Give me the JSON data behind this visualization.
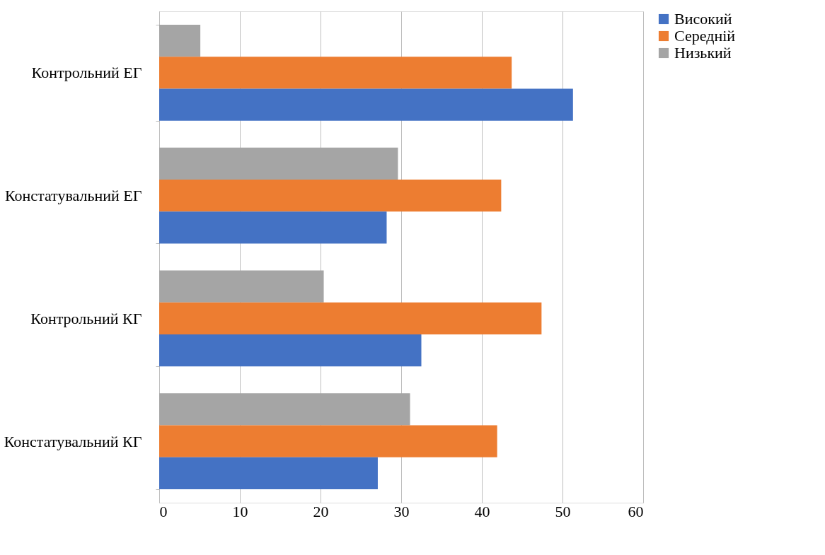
{
  "chart_data": {
    "type": "bar",
    "orientation": "horizontal",
    "categories": [
      "Контрольний ЕГ",
      "Констатувальний ЕГ",
      "Контрольний КГ",
      "Констатувальний КГ"
    ],
    "series": [
      {
        "name": "Низький",
        "color": "#a5a5a5",
        "values": [
          5.1,
          29.6,
          20.4,
          31.1
        ]
      },
      {
        "name": "Середній",
        "color": "#ed7d31",
        "values": [
          43.7,
          42.4,
          47.4,
          41.9
        ]
      },
      {
        "name": "Високий",
        "color": "#4472c4",
        "values": [
          51.3,
          28.2,
          32.5,
          27.1
        ]
      }
    ],
    "xlim": [
      0,
      60
    ],
    "xticks": [
      0,
      10,
      20,
      30,
      40,
      50,
      60
    ],
    "grid": "x",
    "legend": "right"
  }
}
